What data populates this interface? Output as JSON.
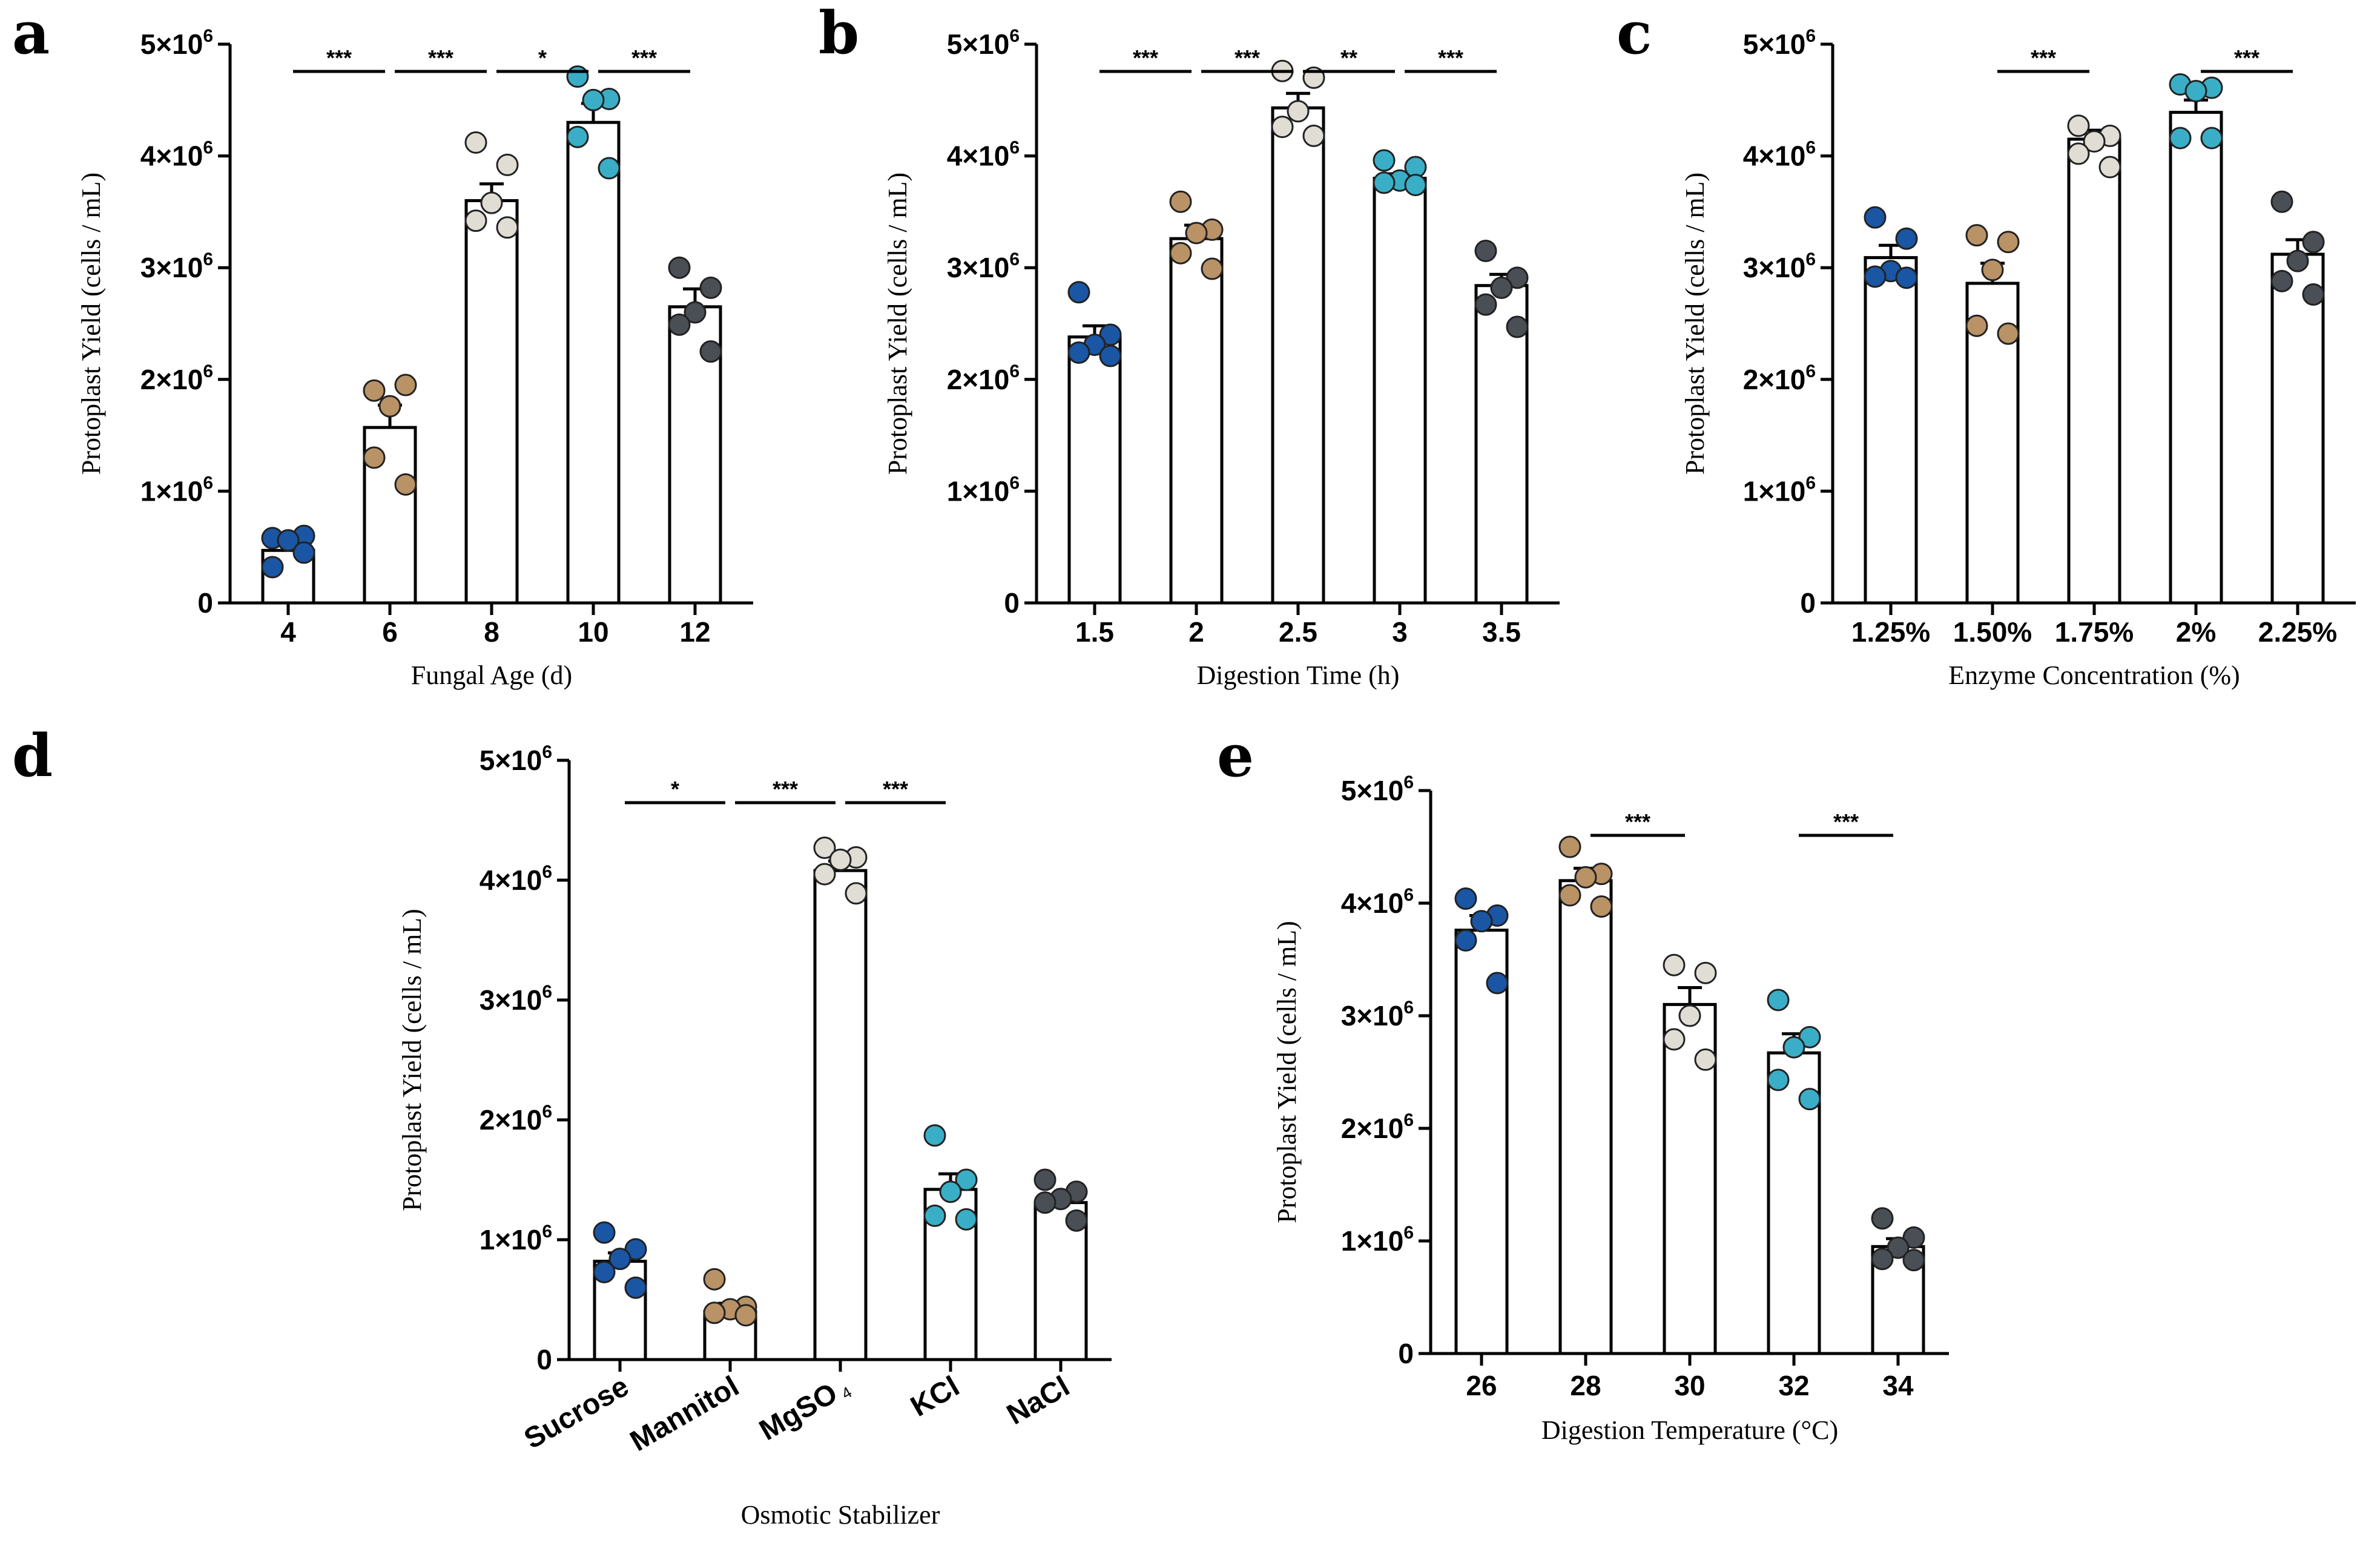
{
  "figure": {
    "colors": {
      "dark_blue": "#1a56a4",
      "tan": "#b99266",
      "light_gray": "#e0ddd5",
      "teal": "#3aaec6",
      "dark_gray": "#4a4e55"
    }
  },
  "chart_data": [
    {
      "panel": "a",
      "type": "bar",
      "title": "",
      "xlabel": "Fungal Age (d)",
      "ylabel": "Protoplast Yield  (cells / mL)",
      "ylim": [
        0,
        5000000
      ],
      "yticks": [
        {
          "value": 0,
          "label": "0"
        },
        {
          "value": 1000000,
          "base": "1×10",
          "exp": "6"
        },
        {
          "value": 2000000,
          "base": "2×10",
          "exp": "6"
        },
        {
          "value": 3000000,
          "base": "3×10",
          "exp": "6"
        },
        {
          "value": 4000000,
          "base": "4×10",
          "exp": "6"
        },
        {
          "value": 5000000,
          "base": "5×10",
          "exp": "6"
        }
      ],
      "categories": [
        "4",
        "6",
        "8",
        "10",
        "12"
      ],
      "values": [
        470000,
        1570000,
        3600000,
        4300000,
        2650000
      ],
      "errors": [
        80000,
        200000,
        150000,
        170000,
        160000
      ],
      "points": [
        [
          580000,
          600000,
          560000,
          320000,
          450000
        ],
        [
          1900000,
          1950000,
          1760000,
          1300000,
          1060000
        ],
        [
          4120000,
          3920000,
          3580000,
          3420000,
          3360000
        ],
        [
          4710000,
          4510000,
          4500000,
          4170000,
          3890000
        ],
        [
          3000000,
          2820000,
          2600000,
          2490000,
          2250000
        ]
      ],
      "point_colors": [
        "dark_blue",
        "tan",
        "light_gray",
        "teal",
        "dark_gray"
      ],
      "significance": [
        {
          "from": 0,
          "to": 1,
          "label": "***"
        },
        {
          "from": 1,
          "to": 2,
          "label": "***"
        },
        {
          "from": 2,
          "to": 3,
          "label": "*"
        },
        {
          "from": 3,
          "to": 4,
          "label": "***"
        }
      ]
    },
    {
      "panel": "b",
      "type": "bar",
      "title": "",
      "xlabel": "Digestion Time (h)",
      "ylabel": "Protoplast Yield  (cells / mL)",
      "ylim": [
        0,
        5000000
      ],
      "yticks": [
        {
          "value": 0,
          "label": "0"
        },
        {
          "value": 1000000,
          "base": "1×10",
          "exp": "6"
        },
        {
          "value": 2000000,
          "base": "2×10",
          "exp": "6"
        },
        {
          "value": 3000000,
          "base": "3×10",
          "exp": "6"
        },
        {
          "value": 4000000,
          "base": "4×10",
          "exp": "6"
        },
        {
          "value": 5000000,
          "base": "5×10",
          "exp": "6"
        }
      ],
      "categories": [
        "1.5",
        "2",
        "2.5",
        "3",
        "3.5"
      ],
      "values": [
        2380000,
        3260000,
        4430000,
        3800000,
        2840000
      ],
      "errors": [
        100000,
        120000,
        130000,
        40000,
        100000
      ],
      "points": [
        [
          2780000,
          2400000,
          2310000,
          2240000,
          2210000
        ],
        [
          3590000,
          3340000,
          3310000,
          3130000,
          2990000
        ],
        [
          4760000,
          4700000,
          4400000,
          4260000,
          4180000
        ],
        [
          3960000,
          3900000,
          3780000,
          3760000,
          3740000
        ],
        [
          3150000,
          2910000,
          2820000,
          2670000,
          2470000
        ]
      ],
      "point_colors": [
        "dark_blue",
        "tan",
        "light_gray",
        "teal",
        "dark_gray"
      ],
      "significance": [
        {
          "from": 0,
          "to": 1,
          "label": "***"
        },
        {
          "from": 1,
          "to": 2,
          "label": "***"
        },
        {
          "from": 2,
          "to": 3,
          "label": "**"
        },
        {
          "from": 3,
          "to": 4,
          "label": "***"
        }
      ]
    },
    {
      "panel": "c",
      "type": "bar",
      "title": "",
      "xlabel": "Enzyme Concentration (%)",
      "ylabel": "Protoplast Yield  (cells / mL)",
      "ylim": [
        0,
        5000000
      ],
      "yticks": [
        {
          "value": 0,
          "label": "0"
        },
        {
          "value": 1000000,
          "base": "1×10",
          "exp": "6"
        },
        {
          "value": 2000000,
          "base": "2×10",
          "exp": "6"
        },
        {
          "value": 3000000,
          "base": "3×10",
          "exp": "6"
        },
        {
          "value": 4000000,
          "base": "4×10",
          "exp": "6"
        },
        {
          "value": 5000000,
          "base": "5×10",
          "exp": "6"
        }
      ],
      "categories": [
        "1.25%",
        "1.50%",
        "1.75%",
        "2%",
        "2.25%"
      ],
      "values": [
        3090000,
        2860000,
        4150000,
        4390000,
        3120000
      ],
      "errors": [
        110000,
        180000,
        80000,
        110000,
        130000
      ],
      "points": [
        [
          3450000,
          3260000,
          2970000,
          2920000,
          2910000
        ],
        [
          3290000,
          3230000,
          2980000,
          2480000,
          2410000
        ],
        [
          4270000,
          4180000,
          4130000,
          4020000,
          3900000
        ],
        [
          4640000,
          4610000,
          4580000,
          4160000,
          4160000
        ],
        [
          3590000,
          3230000,
          3060000,
          2880000,
          2760000
        ]
      ],
      "point_colors": [
        "dark_blue",
        "tan",
        "light_gray",
        "teal",
        "dark_gray"
      ],
      "significance": [
        {
          "from": 1,
          "to": 2,
          "label": "***"
        },
        {
          "from": 3,
          "to": 4,
          "label": "***"
        }
      ]
    },
    {
      "panel": "d",
      "type": "bar",
      "title": "",
      "xlabel": "Osmotic Stabilizer",
      "ylabel": "Protoplast Yield  (cells / mL)",
      "ylim": [
        0,
        5000000
      ],
      "yticks": [
        {
          "value": 0,
          "label": "0"
        },
        {
          "value": 1000000,
          "base": "1×10",
          "exp": "6"
        },
        {
          "value": 2000000,
          "base": "2×10",
          "exp": "6"
        },
        {
          "value": 3000000,
          "base": "3×10",
          "exp": "6"
        },
        {
          "value": 4000000,
          "base": "4×10",
          "exp": "6"
        },
        {
          "value": 5000000,
          "base": "5×10",
          "exp": "6"
        }
      ],
      "categories": [
        "Sucrose",
        "Mannitol",
        "MgSO",
        "KCl",
        "NaCl"
      ],
      "category_subscripts": [
        "",
        "",
        "4",
        "",
        ""
      ],
      "values": [
        820000,
        400000,
        4080000,
        1420000,
        1310000
      ],
      "errors": [
        70000,
        70000,
        80000,
        130000,
        50000
      ],
      "points": [
        [
          1060000,
          920000,
          840000,
          730000,
          600000
        ],
        [
          670000,
          440000,
          420000,
          390000,
          370000
        ],
        [
          4270000,
          4190000,
          4170000,
          4050000,
          3890000
        ],
        [
          1870000,
          1500000,
          1400000,
          1200000,
          1170000
        ],
        [
          1500000,
          1400000,
          1340000,
          1310000,
          1160000
        ]
      ],
      "point_colors": [
        "dark_blue",
        "tan",
        "light_gray",
        "teal",
        "dark_gray"
      ],
      "significance": [
        {
          "from": 0,
          "to": 1,
          "label": "*"
        },
        {
          "from": 1,
          "to": 2,
          "label": "***"
        },
        {
          "from": 2,
          "to": 3,
          "label": "***"
        }
      ]
    },
    {
      "panel": "e",
      "type": "bar",
      "title": "",
      "xlabel": "Digestion Temperature (°C)",
      "ylabel": "Protoplast Yield  (cells / mL)",
      "ylim": [
        0,
        5000000
      ],
      "yticks": [
        {
          "value": 0,
          "label": "0"
        },
        {
          "value": 1000000,
          "base": "1×10",
          "exp": "6"
        },
        {
          "value": 2000000,
          "base": "2×10",
          "exp": "6"
        },
        {
          "value": 3000000,
          "base": "3×10",
          "exp": "6"
        },
        {
          "value": 4000000,
          "base": "4×10",
          "exp": "6"
        },
        {
          "value": 5000000,
          "base": "5×10",
          "exp": "6"
        }
      ],
      "categories": [
        "26",
        "28",
        "30",
        "32",
        "34"
      ],
      "values": [
        3760000,
        4200000,
        3100000,
        2670000,
        950000
      ],
      "errors": [
        130000,
        110000,
        150000,
        170000,
        70000
      ],
      "points": [
        [
          4040000,
          3890000,
          3840000,
          3670000,
          3290000
        ],
        [
          4500000,
          4260000,
          4230000,
          4070000,
          3970000
        ],
        [
          3450000,
          3380000,
          3000000,
          2790000,
          2610000
        ],
        [
          3140000,
          2810000,
          2720000,
          2430000,
          2260000
        ],
        [
          1200000,
          1030000,
          940000,
          840000,
          830000
        ]
      ],
      "point_colors": [
        "dark_blue",
        "tan",
        "light_gray",
        "teal",
        "dark_gray"
      ],
      "significance": [
        {
          "from": 1,
          "to": 2,
          "label": "***"
        },
        {
          "from": 3,
          "to": 4,
          "label": "***"
        }
      ]
    }
  ]
}
